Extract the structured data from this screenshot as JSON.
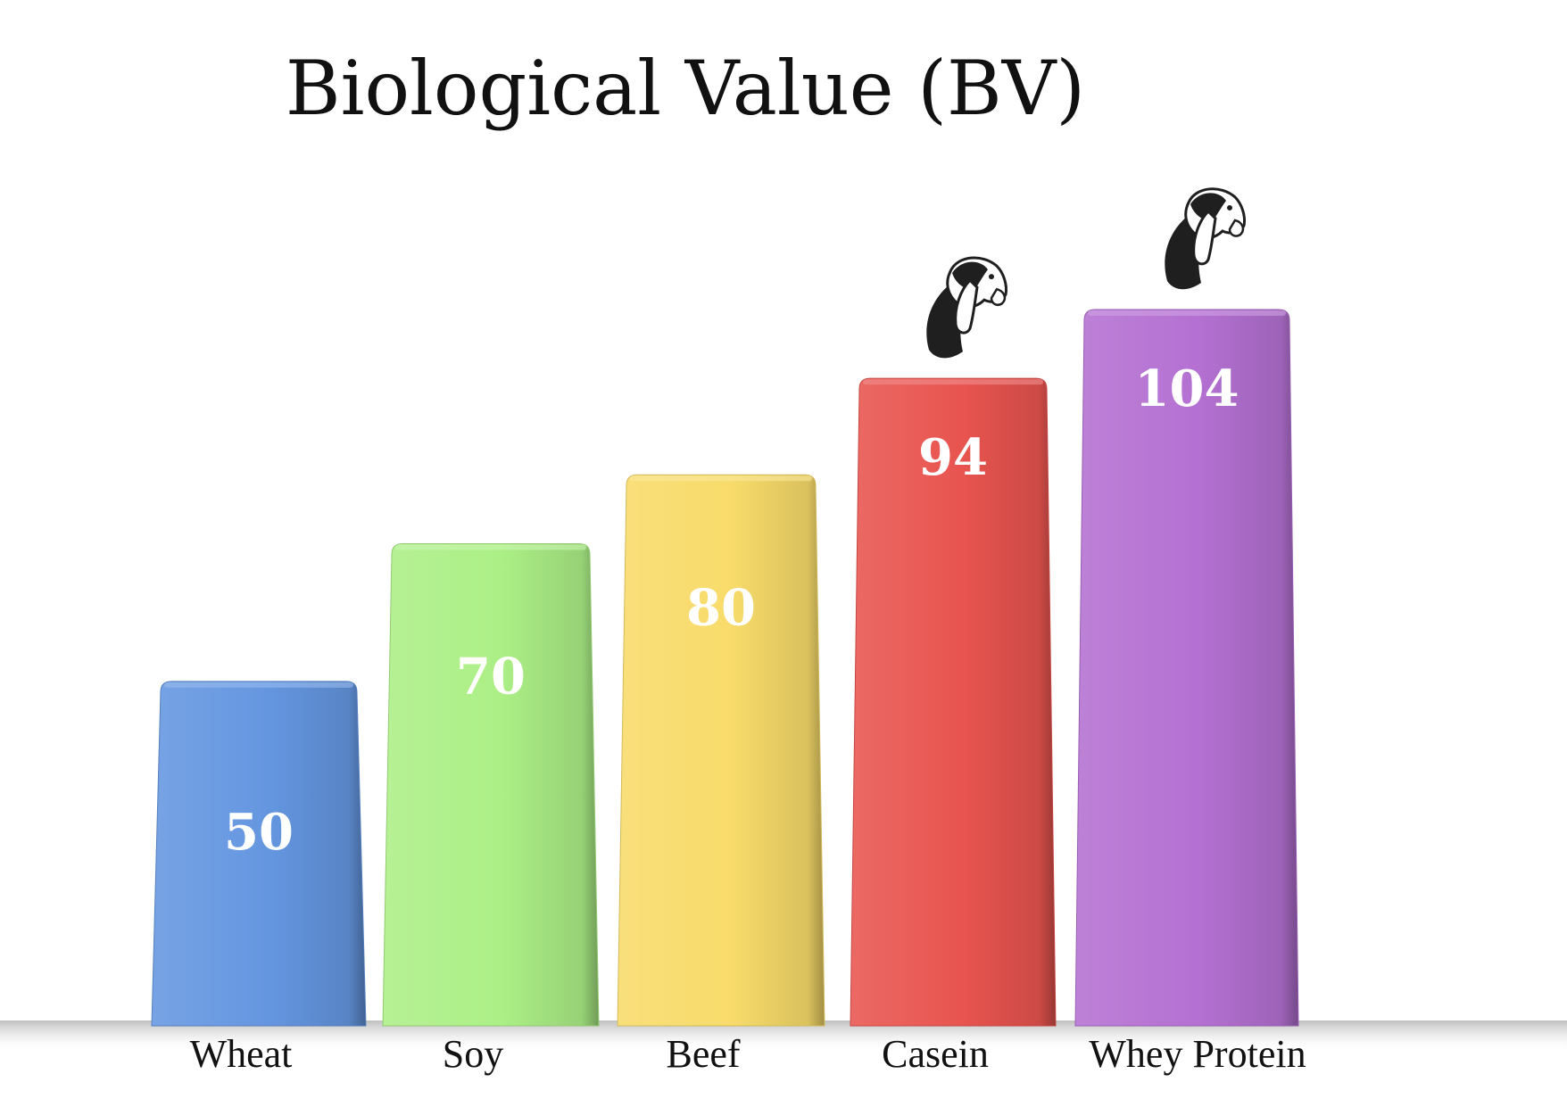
{
  "chart_data": {
    "type": "bar",
    "title": "Biological Value (BV)",
    "xlabel": "",
    "ylabel": "",
    "ylim": [
      0,
      115
    ],
    "grid": false,
    "legend": "none",
    "categories": [
      "Wheat",
      "Soy",
      "Beef",
      "Casein",
      "Whey Protein"
    ],
    "values": [
      50,
      70,
      80,
      94,
      104
    ],
    "value_labels": [
      "50",
      "70",
      "80",
      "94",
      "104"
    ],
    "colors": [
      "#6496e0",
      "#acef86",
      "#f8db6a",
      "#e8544f",
      "#b470d2"
    ],
    "icons": [
      "",
      "",
      "",
      "goat-head-icon",
      "goat-head-icon"
    ]
  }
}
